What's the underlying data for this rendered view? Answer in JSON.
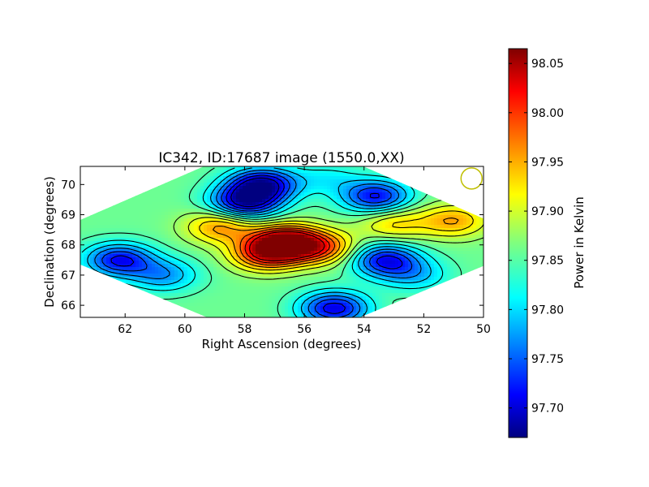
{
  "chart_data": {
    "type": "heatmap",
    "title": "IC342, ID:17687 image (1550.0,XX)",
    "xlabel": "Right Ascension (degrees)",
    "ylabel": "Declination (degrees)",
    "xlim": [
      63.5,
      50.0
    ],
    "ylim": [
      65.6,
      70.6
    ],
    "x_ticks": [
      "62",
      "60",
      "58",
      "56",
      "54",
      "52",
      "50"
    ],
    "y_ticks": [
      "66",
      "67",
      "68",
      "69",
      "70"
    ],
    "colorbar_label": "Power in Kelvin",
    "colorbar_range": [
      97.67,
      98.065
    ],
    "colorbar_ticks": [
      "97.70",
      "97.75",
      "97.80",
      "97.85",
      "97.90",
      "97.95",
      "98.00",
      "98.05"
    ],
    "colormap": "jet",
    "contour_color": "#000000",
    "beam_marker": {
      "ra": 50.4,
      "dec": 70.2,
      "color": "#bfbf00"
    },
    "base_value": 97.86,
    "features": [
      {
        "ra": 56.6,
        "dec": 68.1,
        "value": 98.06
      },
      {
        "ra": 57.3,
        "dec": 67.7,
        "value": 98.0
      },
      {
        "ra": 55.4,
        "dec": 67.9,
        "value": 97.97
      },
      {
        "ra": 58.8,
        "dec": 68.6,
        "value": 97.96
      },
      {
        "ra": 53.0,
        "dec": 68.7,
        "value": 97.93
      },
      {
        "ra": 51.0,
        "dec": 68.8,
        "value": 97.95
      },
      {
        "ra": 57.4,
        "dec": 70.0,
        "value": 97.69
      },
      {
        "ra": 58.0,
        "dec": 69.4,
        "value": 97.7
      },
      {
        "ra": 53.6,
        "dec": 69.6,
        "value": 97.72
      },
      {
        "ra": 55.0,
        "dec": 65.9,
        "value": 97.71
      },
      {
        "ra": 62.2,
        "dec": 67.5,
        "value": 97.72
      },
      {
        "ra": 53.3,
        "dec": 67.5,
        "value": 97.72
      },
      {
        "ra": 55.2,
        "dec": 70.2,
        "value": 97.82
      },
      {
        "ra": 60.7,
        "dec": 67.0,
        "value": 97.78
      },
      {
        "ra": 52.3,
        "dec": 67.0,
        "value": 97.8
      }
    ]
  }
}
